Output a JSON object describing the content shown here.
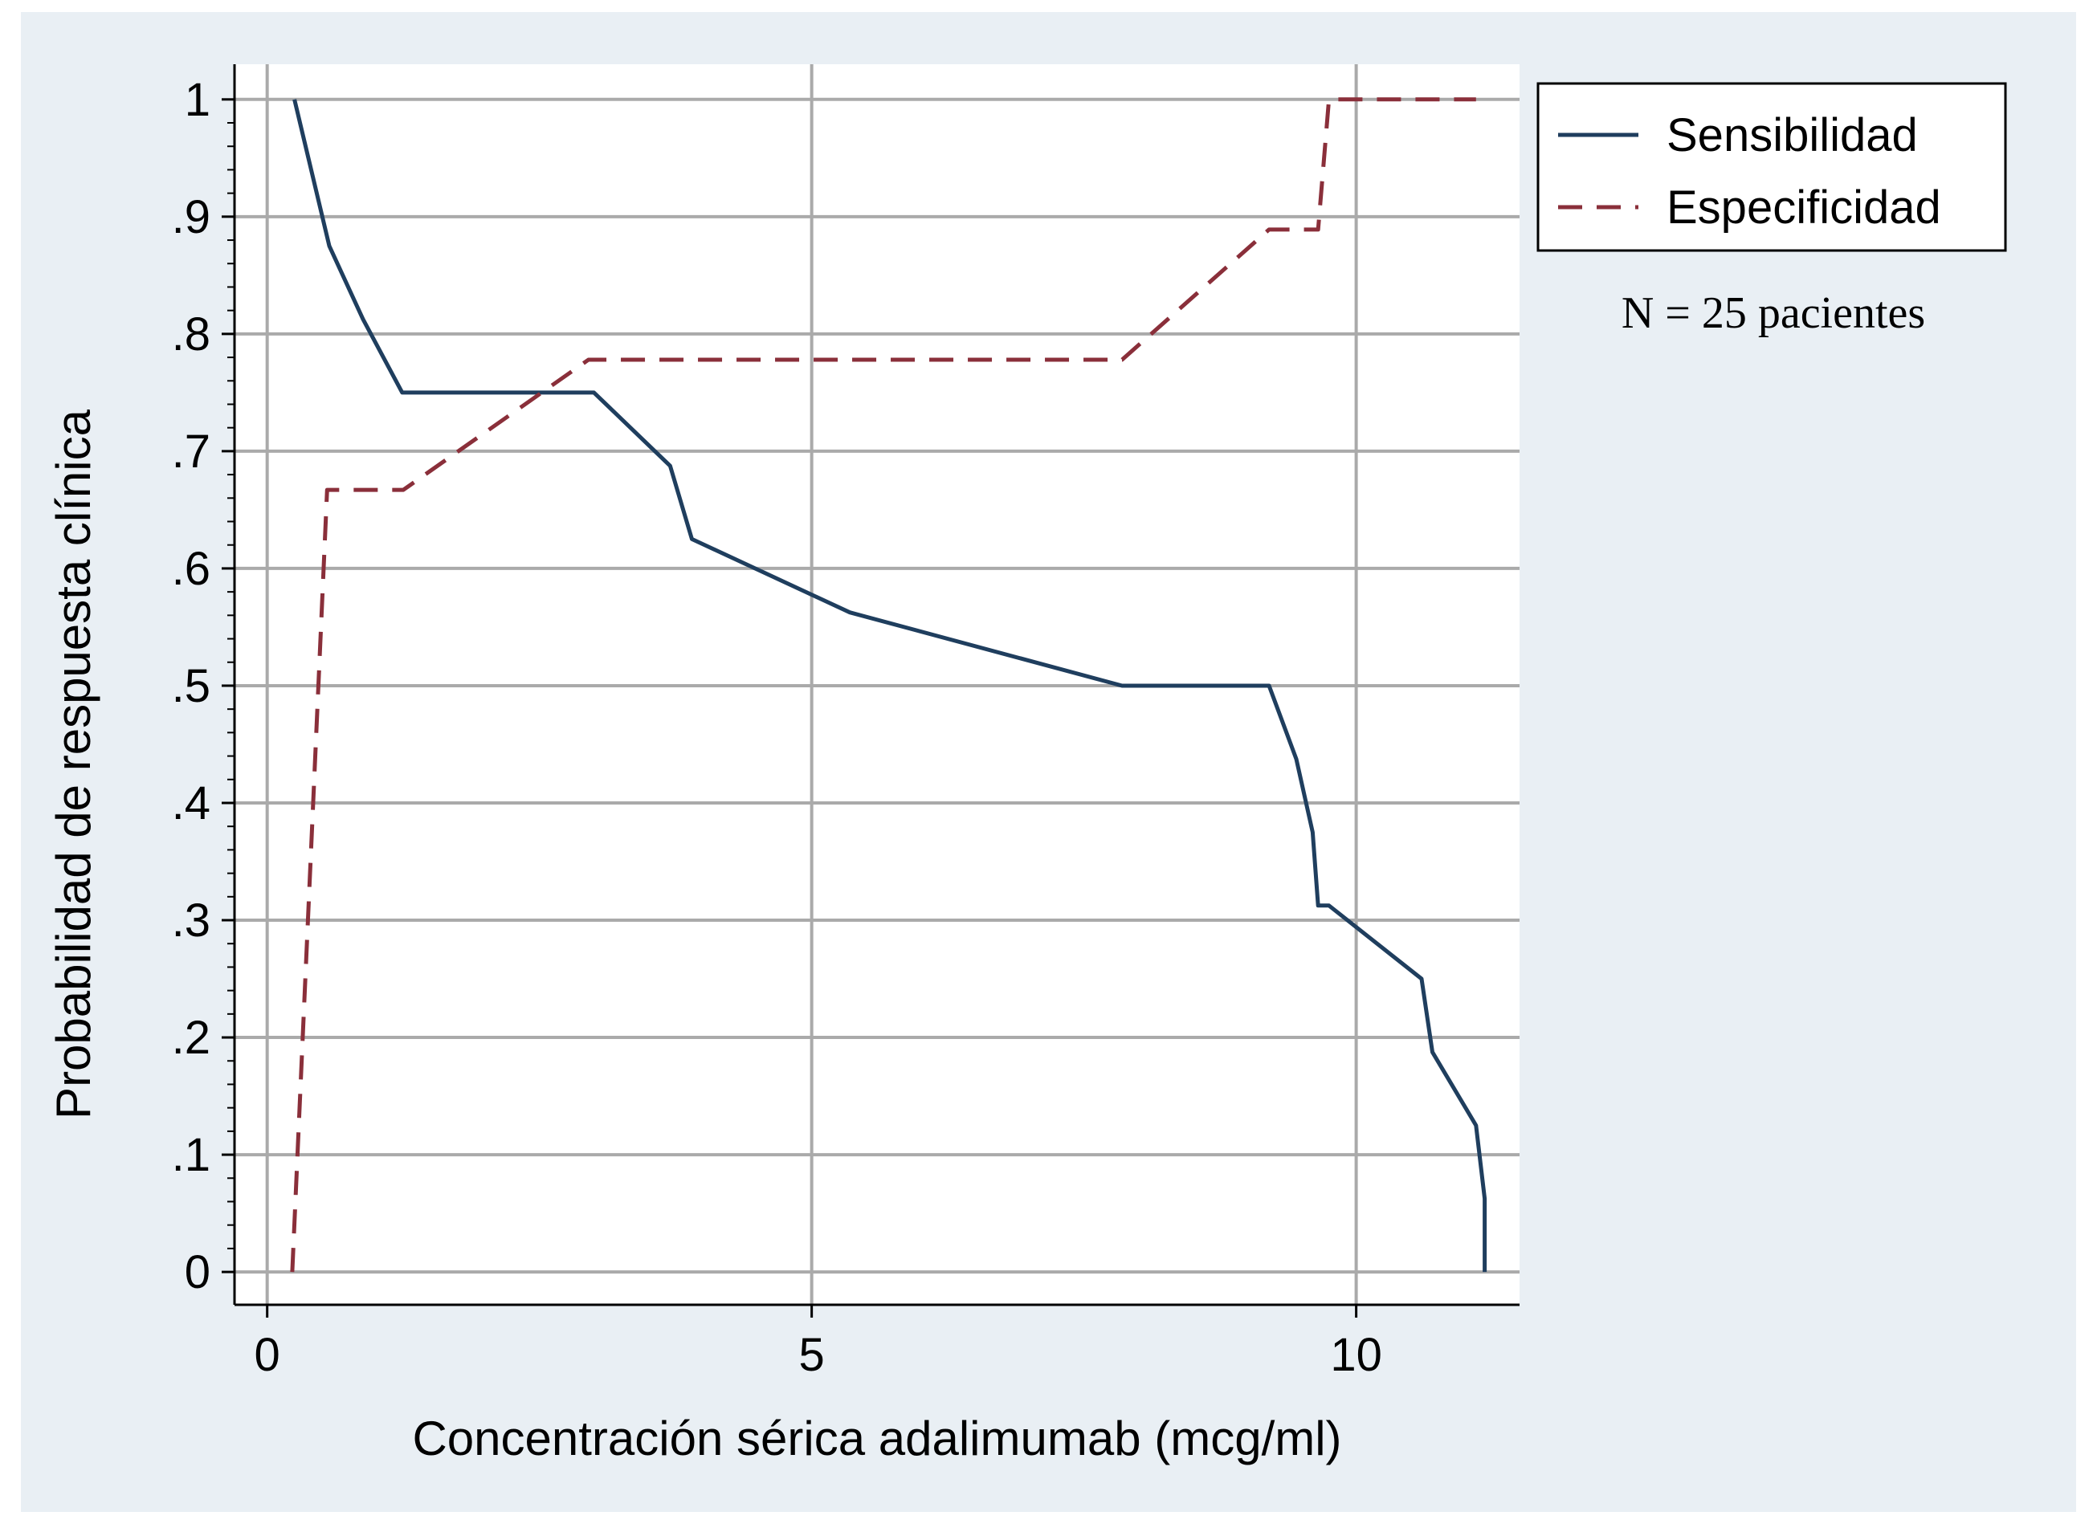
{
  "colors": {
    "outer_background": "#e9eff4",
    "plot_background": "#ffffff",
    "grid": "#aaaaaa",
    "axis": "#000000",
    "sensibilidad": "#1f3e5e",
    "especificidad": "#8a2f3a"
  },
  "chart_data": {
    "type": "line",
    "xlabel": "Concentración sérica adalimumab (mcg/ml)",
    "ylabel": "Probabilidad de respuesta clínica",
    "xlim": [
      -0.3,
      11.5
    ],
    "ylim": [
      -0.028,
      1.03
    ],
    "x_ticks": [
      0,
      5,
      10
    ],
    "x_tick_labels": [
      "0",
      "5",
      "10"
    ],
    "y_ticks": [
      0,
      0.1,
      0.2,
      0.3,
      0.4,
      0.5,
      0.6,
      0.7,
      0.8,
      0.9,
      1
    ],
    "y_tick_labels": [
      "0",
      ".1",
      ".2",
      ".3",
      ".4",
      ".5",
      ".6",
      ".7",
      ".8",
      ".9",
      "1"
    ],
    "grid": true,
    "legend_position": "top-right, outside plot",
    "series": [
      {
        "name": "Sensibilidad",
        "style": "solid",
        "points": [
          [
            0.25,
            1.0
          ],
          [
            0.57,
            0.875
          ],
          [
            0.88,
            0.8125
          ],
          [
            1.24,
            0.75
          ],
          [
            3.0,
            0.75
          ],
          [
            3.7,
            0.6875
          ],
          [
            3.9,
            0.625
          ],
          [
            5.35,
            0.5625
          ],
          [
            7.85,
            0.5
          ],
          [
            9.2,
            0.5
          ],
          [
            9.45,
            0.4375
          ],
          [
            9.6,
            0.375
          ],
          [
            9.65,
            0.3125
          ],
          [
            9.75,
            0.3125
          ],
          [
            10.6,
            0.25
          ],
          [
            10.7,
            0.1875
          ],
          [
            11.1,
            0.125
          ],
          [
            11.18,
            0.0625
          ],
          [
            11.18,
            0.0
          ]
        ]
      },
      {
        "name": "Especificidad",
        "style": "dashed",
        "points": [
          [
            0.23,
            0.0
          ],
          [
            0.55,
            0.667
          ],
          [
            1.25,
            0.667
          ],
          [
            2.95,
            0.778
          ],
          [
            7.85,
            0.778
          ],
          [
            9.2,
            0.889
          ],
          [
            9.65,
            0.889
          ],
          [
            9.75,
            1.0
          ],
          [
            11.1,
            1.0
          ]
        ]
      }
    ],
    "annotation": "N = 25 pacientes"
  }
}
